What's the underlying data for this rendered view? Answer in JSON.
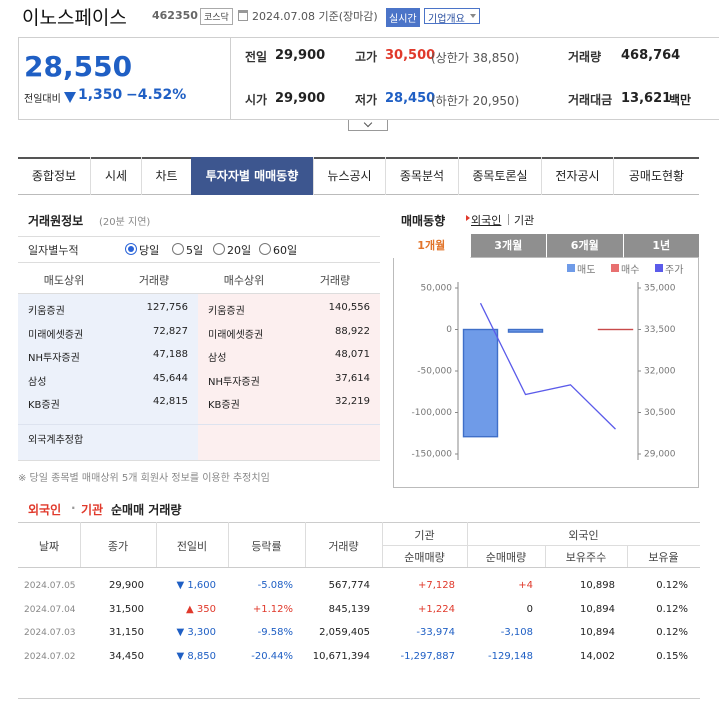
{
  "header": {
    "name": "이노스페이스",
    "code": "462350",
    "market": "코스닥",
    "date": "2024.07.08 기준(장마감)",
    "realtime": "실시간",
    "company": "기업개요"
  },
  "quote": {
    "price": "28,550",
    "change_label": "전일대비",
    "change": "1,350",
    "change_pct": "−4.52%",
    "cells": [
      {
        "label": "전일",
        "value": "29,900"
      },
      {
        "label": "고가",
        "value": "30,500",
        "extra": "(상한가 38,850)"
      },
      {
        "label": "거래량",
        "value": "468,764"
      },
      {
        "label": "시가",
        "value": "29,900"
      },
      {
        "label": "저가",
        "value": "28,450",
        "extra": "(하한가 20,950)"
      },
      {
        "label": "거래대금",
        "value": "13,621",
        "unit": "백만"
      }
    ]
  },
  "tabs": [
    "종합정보",
    "시세",
    "차트",
    "투자자별 매매동향",
    "뉴스공시",
    "종목분석",
    "종목토론실",
    "전자공시",
    "공매도현황"
  ],
  "active_tab": 3,
  "brokers": {
    "title": "거래원정보",
    "note": "(20분 지연)",
    "filter_label": "일자별누적",
    "options": [
      "당일",
      "5일",
      "20일",
      "60일"
    ],
    "selected_option": 0,
    "headers": [
      "매도상위",
      "거래량",
      "매수상위",
      "거래량"
    ],
    "rows": [
      [
        "키움증권",
        "127,756",
        "키움증권",
        "140,556"
      ],
      [
        "미래에셋증권",
        "72,827",
        "미래에셋증권",
        "88,922"
      ],
      [
        "NH투자증권",
        "47,188",
        "삼성",
        "48,071"
      ],
      [
        "삼성",
        "45,644",
        "NH투자증권",
        "37,614"
      ],
      [
        "KB증권",
        "42,815",
        "KB증권",
        "32,219"
      ]
    ],
    "foreign": "외국계추정합",
    "footnote": "※ 당일 종목별 매매상위 5개 회원사 정보를 이용한 추정치임"
  },
  "chart_data": {
    "type": "bar",
    "title": "매매동향",
    "links": [
      "외국인",
      "기관"
    ],
    "active_link": 0,
    "periods": [
      "1개월",
      "3개월",
      "6개월",
      "1년"
    ],
    "active_period": 0,
    "ylim": [
      -150000,
      50000
    ],
    "yticks": [
      {
        "value": 50000,
        "label": "50,000"
      },
      0,
      {
        "value": -50000,
        "label": "-50,000"
      },
      {
        "value": -100000,
        "label": "-100,000"
      },
      {
        "value": -150000,
        "label": "-150,000"
      }
    ],
    "y2lim": [
      29000,
      35000
    ],
    "y2ticks": [
      {
        "value": 35000,
        "label": "35,000"
      },
      {
        "value": 33500,
        "label": "33,500"
      },
      {
        "value": 32000,
        "label": "32,000"
      },
      {
        "value": 30500,
        "label": "30,500"
      },
      {
        "value": 29000,
        "label": "29,000"
      }
    ],
    "series": [
      {
        "name": "매도",
        "color": "#6f9be8",
        "values": [
          -129148,
          -3108,
          0,
          0
        ]
      },
      {
        "name": "매수",
        "color": "#e87070",
        "values": [
          0,
          0,
          0,
          4
        ]
      },
      {
        "name": "주가",
        "color": "#5b5bea",
        "axis": "y2",
        "values": [
          34450,
          31150,
          31500,
          29900
        ]
      }
    ]
  },
  "net": {
    "title_a": "외국인",
    "sep": "·",
    "title_b": "기관",
    "title_c": "순매매 거래량",
    "headers": [
      "날짜",
      "종가",
      "전일비",
      "등락률",
      "거래량"
    ],
    "group_a": "기관",
    "group_b": "외국인",
    "sub": [
      "순매매량",
      "순매매량",
      "보유주수",
      "보유율"
    ],
    "rows": [
      [
        "2024.07.05",
        "29,900",
        "▼ 1,600",
        "-5.08%",
        "567,774",
        "+7,128",
        "+4",
        "10,898",
        "0.12%"
      ],
      [
        "2024.07.04",
        "31,500",
        "▲ 350",
        "+1.12%",
        "845,139",
        "+1,224",
        "0",
        "10,894",
        "0.12%"
      ],
      [
        "2024.07.03",
        "31,150",
        "▼ 3,300",
        "-9.58%",
        "2,059,405",
        "-33,974",
        "-3,108",
        "10,894",
        "0.12%"
      ],
      [
        "2024.07.02",
        "34,450",
        "▼ 8,850",
        "-20.44%",
        "10,671,394",
        "-1,297,887",
        "-129,148",
        "14,002",
        "0.15%"
      ]
    ]
  }
}
